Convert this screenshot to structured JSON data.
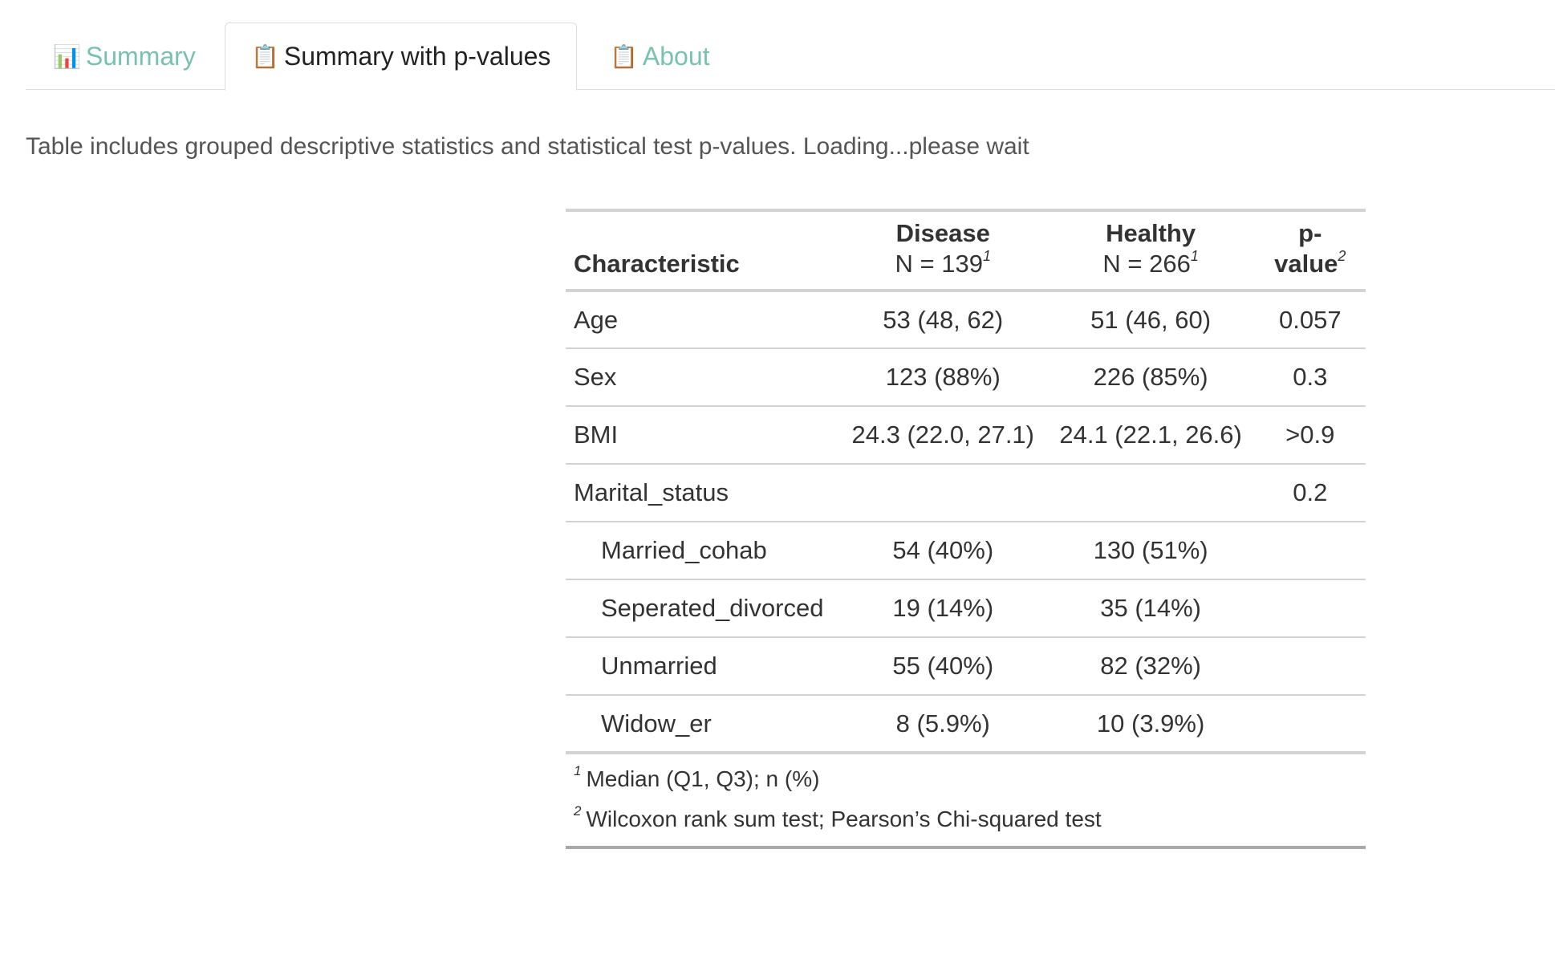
{
  "tabs": [
    {
      "label": "Summary",
      "icon": "📊",
      "icon_name": "bar-chart-icon",
      "active": false
    },
    {
      "label": "Summary with p-values",
      "icon": "📋",
      "icon_name": "clipboard-icon",
      "active": true
    },
    {
      "label": "About",
      "icon": "📋",
      "icon_name": "clipboard-icon",
      "active": false
    }
  ],
  "description": "Table includes grouped descriptive statistics and statistical test p-values. Loading...please wait",
  "table": {
    "headers": {
      "characteristic": "Characteristic",
      "disease": "Disease",
      "disease_n": "N = 139",
      "disease_sup": "1",
      "healthy": "Healthy",
      "healthy_n": "N = 266",
      "healthy_sup": "1",
      "pvalue": "p-value",
      "pvalue_sup": "2"
    },
    "rows": [
      {
        "label": "Age",
        "disease": "53 (48, 62)",
        "healthy": "51 (46, 60)",
        "p": "0.057",
        "indent": false
      },
      {
        "label": "Sex",
        "disease": "123 (88%)",
        "healthy": "226 (85%)",
        "p": "0.3",
        "indent": false
      },
      {
        "label": "BMI",
        "disease": "24.3 (22.0, 27.1)",
        "healthy": "24.1 (22.1, 26.6)",
        "p": ">0.9",
        "indent": false
      },
      {
        "label": "Marital_status",
        "disease": "",
        "healthy": "",
        "p": "0.2",
        "indent": false
      },
      {
        "label": "Married_cohab",
        "disease": "54 (40%)",
        "healthy": "130 (51%)",
        "p": "",
        "indent": true
      },
      {
        "label": "Seperated_divorced",
        "disease": "19 (14%)",
        "healthy": "35 (14%)",
        "p": "",
        "indent": true
      },
      {
        "label": "Unmarried",
        "disease": "55 (40%)",
        "healthy": "82 (32%)",
        "p": "",
        "indent": true
      },
      {
        "label": "Widow_er",
        "disease": "8 (5.9%)",
        "healthy": "10 (3.9%)",
        "p": "",
        "indent": true
      }
    ],
    "footnotes": [
      {
        "mark": "1",
        "text": "Median (Q1, Q3); n (%)"
      },
      {
        "mark": "2",
        "text": "Wilcoxon rank sum test; Pearson’s Chi-squared test"
      }
    ]
  },
  "colors": {
    "accent": "#78c2ad",
    "text": "#333333",
    "border": "#d3d3d3"
  }
}
